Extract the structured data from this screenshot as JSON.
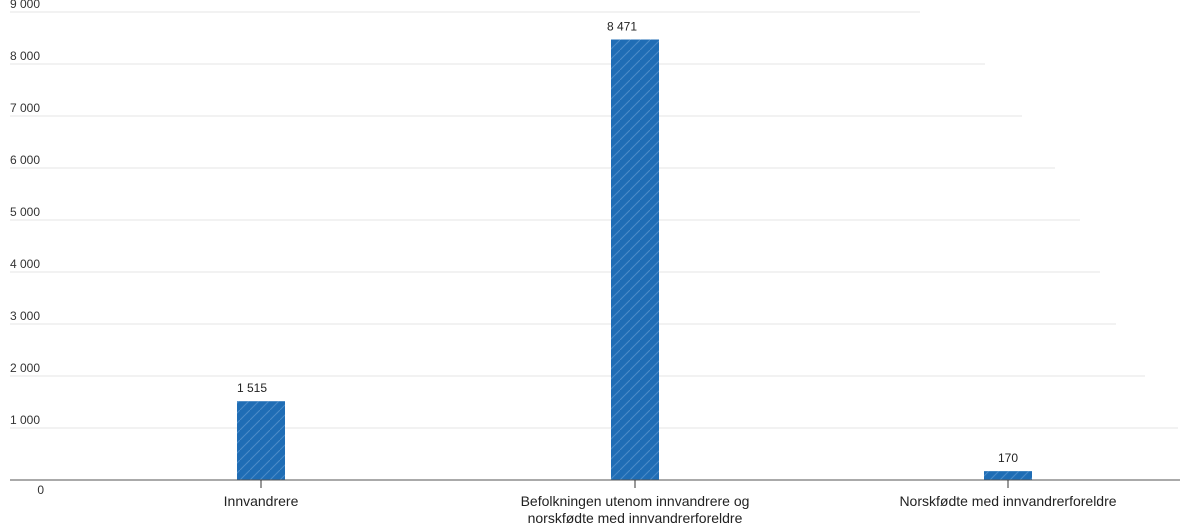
{
  "chart_data": {
    "type": "bar",
    "title": "",
    "xlabel": "",
    "ylabel": "",
    "categories": [
      "Innvandrere",
      "Befolkningen utenom innvandrere og norskfødte med innvandrerforeldre",
      "Norskfødte med innvandrerforeldre"
    ],
    "category_lines": [
      [
        "Innvandrere"
      ],
      [
        "Befolkningen utenom innvandrere og",
        "norskfødte med innvandrerforeldre"
      ],
      [
        "Norskfødte med innvandrerforeldre"
      ]
    ],
    "values": [
      1515,
      8471,
      170
    ],
    "value_labels": [
      "1 515",
      "8 471",
      "170"
    ],
    "ylim": [
      0,
      9000
    ],
    "yticks": [
      0,
      1000,
      2000,
      3000,
      4000,
      5000,
      6000,
      7000,
      8000,
      9000
    ],
    "ytick_labels": [
      "0",
      "1 000",
      "2 000",
      "3 000",
      "4 000",
      "5 000",
      "6 000",
      "7 000",
      "8 000",
      "9 000"
    ],
    "grid": true,
    "legend": "none",
    "colors": {
      "bar": "#1f6db5",
      "bar_hatch": "#6fa3d6"
    }
  }
}
